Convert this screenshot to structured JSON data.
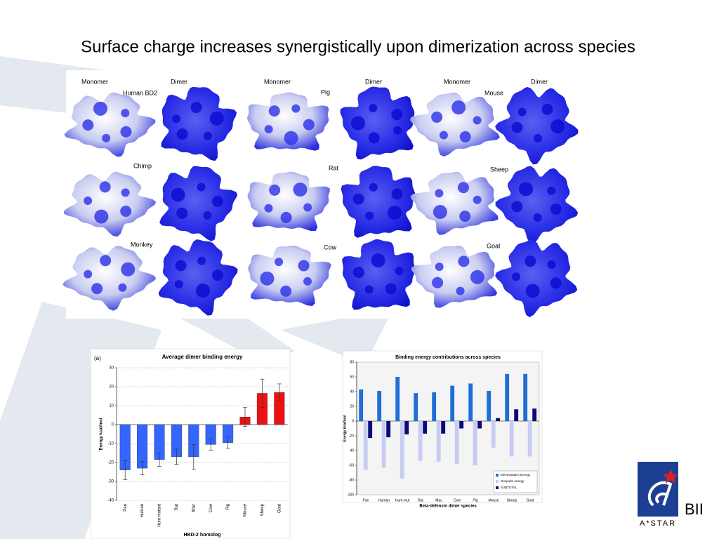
{
  "title": "Surface charge increases synergistically upon dimerization across species",
  "molecule_grid": {
    "column_headers": [
      "Monomer",
      "Dimer",
      "Monomer",
      "Dimer",
      "Monomer",
      "Dimer"
    ],
    "species": [
      "Human BD2",
      "Pig",
      "Mouse",
      "Chimp",
      "Rat",
      "Sheep",
      "Monkey",
      "Cow",
      "Goat"
    ]
  },
  "chart_data": [
    {
      "type": "bar",
      "label": "(a)",
      "title": "Average dimer binding energy",
      "y_label": "Energy kcal/mol",
      "x_label": "HBD-2 homolog",
      "categories": [
        "Pan",
        "Human",
        "Hum mutant",
        "Rat",
        "Mac",
        "Cow",
        "Pig",
        "Mouse",
        "Sheep",
        "Goat"
      ],
      "values": [
        -24,
        -23,
        -18.5,
        -17,
        -17,
        -10.5,
        -9.5,
        4,
        16.5,
        17
      ],
      "errors": [
        5,
        3.5,
        3.5,
        4,
        6.5,
        3,
        3,
        5,
        7.5,
        4.5
      ],
      "colors": [
        "#3366ff",
        "#3366ff",
        "#3366ff",
        "#3366ff",
        "#3366ff",
        "#3366ff",
        "#3366ff",
        "#ee1111",
        "#ee1111",
        "#ee1111"
      ],
      "ylim": [
        -40,
        30
      ],
      "yticks": [
        -40,
        -30,
        -20,
        -10,
        0,
        10,
        20,
        30
      ],
      "grid": true
    },
    {
      "type": "bar",
      "title": "Binding energy contributions across species",
      "y_label": "Energy kcal/mol",
      "x_label": "Beta-defensin dimer species",
      "categories": [
        "Pan",
        "Human",
        "Hum-mut",
        "Rat",
        "Mac",
        "Cow",
        "Pig",
        "Mouse",
        "Sheep",
        "Goat"
      ],
      "series": [
        {
          "name": "Electrostatics Energy",
          "color": "#1f6fd6",
          "values": [
            43,
            41,
            60,
            38,
            39,
            48,
            51,
            41,
            64,
            64
          ]
        },
        {
          "name": "Nonpolar energy",
          "color": "#c8cbf2",
          "values": [
            -66,
            -63,
            -78,
            -54,
            -55,
            -58,
            -60,
            -36,
            -48,
            -48
          ]
        },
        {
          "name": "SUBTOTAL",
          "color": "#0a0a78",
          "values": [
            -23,
            -22,
            -18,
            -17,
            -17,
            -10,
            -10,
            4,
            16,
            17
          ]
        }
      ],
      "ylim": [
        -100,
        80
      ],
      "yticks": [
        -100,
        -80,
        -60,
        -40,
        -20,
        0,
        20,
        40,
        60,
        80
      ],
      "grid": false,
      "legend": "lower right"
    }
  ],
  "logo": {
    "org": "BII",
    "name": "A*STAR"
  }
}
